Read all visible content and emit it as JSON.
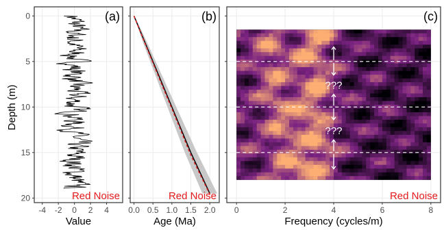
{
  "colors": {
    "note": "#e41a1c",
    "signal": "#000000",
    "age_model": "#000000",
    "age_true": "#e41a1c",
    "age_envelope": "#c8c8c8",
    "grid": "#ebebeb",
    "heat_low": "#000004",
    "heat_mid": "#7b2382",
    "heat_high": "#fcae73"
  },
  "shared": {
    "y_label": "Depth (m)",
    "y_ticks": [
      0,
      5,
      10,
      15,
      20
    ],
    "y_range": [
      -1,
      20.5
    ]
  },
  "chart_data": [
    {
      "type": "line",
      "panel_label": "(a)",
      "note": "Red Noise",
      "xlabel": "Value",
      "x_ticks": [
        -4,
        -2,
        0,
        2,
        4
      ],
      "xlim": [
        -5,
        6
      ],
      "series": [
        {
          "depth_range": [
            0,
            19
          ],
          "amplitude_range": [
            -3,
            3
          ]
        }
      ]
    },
    {
      "type": "line",
      "panel_label": "(b)",
      "note": "Red Noise",
      "xlabel": "Age (Ma)",
      "x_ticks": [
        "0.0",
        "0.5",
        "1.0",
        "1.5",
        "2.0"
      ],
      "x_tick_values": [
        0,
        0.5,
        1,
        1.5,
        2
      ],
      "xlim": [
        -0.1,
        2.25
      ],
      "series": [
        {
          "age": [
            0,
            0.3,
            0.7,
            1.1,
            1.5,
            2.0
          ],
          "depth": [
            0,
            3,
            7,
            11,
            15,
            19.5
          ]
        },
        {
          "age": [
            0,
            0.3,
            0.7,
            1.1,
            1.5,
            2.0
          ],
          "depth": [
            0,
            3.1,
            7.2,
            11.2,
            15.3,
            19.6
          ]
        }
      ]
    },
    {
      "type": "heatmap",
      "panel_label": "(c)",
      "note": "Red Noise",
      "xlabel": "Frequency (cycles/m)",
      "x_ticks": [
        0,
        2,
        4,
        6,
        8
      ],
      "xlim": [
        -0.4,
        8.4
      ],
      "depth_range": [
        1.5,
        18
      ],
      "frequency_range": [
        0,
        8
      ],
      "dashed_lines_depth": [
        5,
        10,
        15
      ],
      "question_labels": [
        {
          "text": "???",
          "depth": 7.6,
          "frequency": 4
        },
        {
          "text": "???",
          "depth": 12.6,
          "frequency": 4
        }
      ]
    }
  ]
}
